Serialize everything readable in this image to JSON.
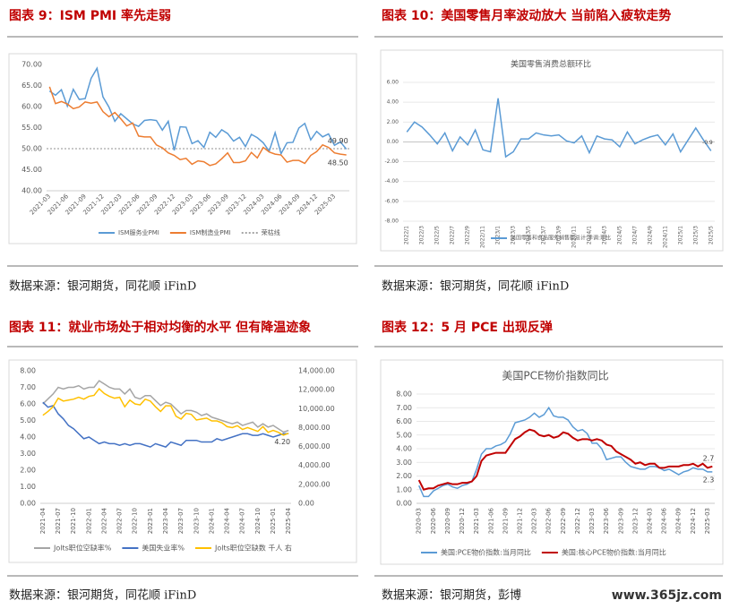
{
  "chart_data": [
    {
      "type": "line",
      "heading": "图表 9：ISM PMI 率先走弱",
      "source": "数据来源：银河期货，同花顺 iFinD",
      "categories": [
        "2021-03",
        null,
        null,
        "2021-06",
        null,
        null,
        "2021-09",
        null,
        null,
        "2021-12",
        null,
        null,
        "2022-03",
        null,
        null,
        "2022-06",
        null,
        null,
        "2022-09",
        null,
        null,
        "2022-12",
        null,
        null,
        "2023-03",
        null,
        null,
        "2023-06",
        null,
        null,
        "2023-09",
        null,
        null,
        "2023-12",
        null,
        null,
        "2024-03",
        null,
        null,
        "2024-06",
        null,
        null,
        "2024-09",
        null,
        null,
        "2024-12",
        null,
        null,
        "2025-03",
        null,
        null
      ],
      "series": [
        {
          "name": "ISM服务业PMI",
          "color": "#5b9bd5",
          "end_label": "49.90",
          "values": [
            63.7,
            62.7,
            64,
            60.1,
            64.1,
            61.7,
            61.9,
            66.7,
            69.1,
            62.3,
            59.9,
            56.5,
            58.3,
            57.1,
            55.9,
            55.3,
            56.7,
            56.9,
            56.7,
            54.4,
            56.5,
            49.6,
            55.2,
            55.1,
            51.2,
            51.9,
            50.3,
            53.9,
            52.7,
            54.5,
            53.6,
            51.8,
            52.7,
            50.5,
            53.4,
            52.6,
            51.4,
            49.4,
            53.8,
            48.8,
            51.4,
            51.5,
            54.9,
            56,
            52.1,
            54.1,
            52.8,
            53.5,
            50.8,
            51.6,
            49.9
          ]
        },
        {
          "name": "ISM制造业PMI",
          "color": "#ed7d31",
          "end_label": "48.50",
          "values": [
            64.7,
            60.7,
            61.2,
            60.6,
            59.5,
            59.9,
            61.1,
            60.8,
            61.1,
            58.8,
            57.6,
            58.6,
            57.1,
            55.4,
            56.1,
            53,
            52.8,
            52.8,
            50.9,
            50.2,
            49,
            48.4,
            47.4,
            47.7,
            46.3,
            47.1,
            46.9,
            46,
            46.4,
            47.6,
            49,
            46.7,
            46.7,
            47.1,
            49.1,
            47.8,
            50.3,
            49.2,
            48.7,
            48.5,
            46.8,
            47.2,
            47.2,
            46.5,
            48.4,
            49.3,
            50.9,
            50.3,
            49,
            48.7,
            48.5
          ]
        }
      ],
      "reference_line": {
        "name": "荣枯线",
        "value": 50,
        "color": "#a6a6a6"
      },
      "ylim": [
        40,
        70
      ],
      "yticks": [
        {
          "value": 40,
          "label": "40.00"
        },
        {
          "value": 45,
          "label": "45.00"
        },
        {
          "value": 50,
          "label": "50.00"
        },
        {
          "value": 55,
          "label": "55.00"
        },
        {
          "value": 60,
          "label": "60.00"
        },
        {
          "value": 65,
          "label": "65.00"
        },
        {
          "value": 70,
          "label": "70.00"
        }
      ],
      "grid": false
    },
    {
      "type": "line",
      "heading": "图表 10：美国零售月率波动放大 当前陷入疲软走势",
      "source": "数据来源：银河期货，同花顺 iFinD",
      "title": "美国零售消费总额环比",
      "categories": [
        "2022/1",
        null,
        "2022/3",
        null,
        "2022/5",
        null,
        "2022/7",
        null,
        "2022/9",
        null,
        "2022/11",
        null,
        "2023/1",
        null,
        "2023/3",
        null,
        "2023/5",
        null,
        "2023/7",
        null,
        "2023/9",
        null,
        "2023/11",
        null,
        "2024/1",
        null,
        "2024/3",
        null,
        "2024/5",
        null,
        "2024/7",
        null,
        "2024/9",
        null,
        "2024/11",
        null,
        "2025/1",
        null,
        "2025/3",
        null,
        "2025/5"
      ],
      "series": [
        {
          "name": "美国零售和食品服务销售额总计:季调:环比",
          "color": "#5b9bd5",
          "end_label": "-0.9",
          "values": [
            1.0,
            2.0,
            1.5,
            0.7,
            -0.2,
            0.9,
            -0.9,
            0.5,
            -0.3,
            1.2,
            -0.8,
            -1.0,
            4.4,
            -1.5,
            -1.0,
            0.3,
            0.3,
            0.9,
            0.7,
            0.6,
            0.7,
            0.1,
            -0.1,
            0.6,
            -1.1,
            0.6,
            0.3,
            0.2,
            -0.5,
            1.0,
            -0.2,
            0.2,
            0.5,
            0.7,
            -0.3,
            0.8,
            -1.0,
            0.2,
            1.4,
            0.2,
            -0.9
          ]
        }
      ],
      "ylim": [
        -8,
        6
      ],
      "yticks": [
        {
          "value": -8,
          "label": "-8.00"
        },
        {
          "value": -6,
          "label": "-6.00"
        },
        {
          "value": -4,
          "label": "-4.00"
        },
        {
          "value": -2,
          "label": "-2.00"
        },
        {
          "value": 0,
          "label": "0.00"
        },
        {
          "value": 2,
          "label": "2.00"
        },
        {
          "value": 4,
          "label": "4.00"
        },
        {
          "value": 6,
          "label": "6.00"
        }
      ],
      "grid": true
    },
    {
      "type": "line",
      "heading": "图表 11：就业市场处于相对均衡的水平 但有降温迹象",
      "source": "数据来源：银河期货，同花顺 iFinD",
      "categories": [
        "2021-04",
        null,
        null,
        "2021-07",
        null,
        null,
        "2021-10",
        null,
        null,
        "2022-01",
        null,
        null,
        "2022-04",
        null,
        null,
        "2022-07",
        null,
        null,
        "2022-10",
        null,
        null,
        "2023-01",
        null,
        null,
        "2023-04",
        null,
        null,
        "2023-07",
        null,
        null,
        "2023-10",
        null,
        null,
        "2024-01",
        null,
        null,
        "2024-04",
        null,
        null,
        "2024-07",
        null,
        null,
        "2024-10",
        null,
        null,
        "2025-01",
        null,
        null,
        "2025-04"
      ],
      "series": [
        {
          "name": "Jolts职位空缺率%",
          "color": "#a5a5a5",
          "values": [
            6.0,
            6.3,
            6.6,
            7.0,
            6.9,
            7.0,
            7.0,
            7.1,
            6.9,
            7.0,
            7.0,
            7.4,
            7.2,
            7.0,
            6.9,
            6.9,
            6.6,
            6.9,
            6.4,
            6.3,
            6.5,
            6.5,
            6.2,
            5.9,
            6.1,
            6.0,
            5.7,
            5.4,
            5.6,
            5.6,
            5.5,
            5.3,
            5.4,
            5.2,
            5.1,
            5.0,
            4.9,
            4.8,
            4.9,
            4.7,
            4.8,
            4.9,
            4.6,
            4.8,
            4.6,
            4.7,
            4.5,
            4.3,
            4.4
          ]
        },
        {
          "name": "美国失业率%",
          "color": "#4472c4",
          "end_label": "4.20",
          "values": [
            6.1,
            5.8,
            5.9,
            5.4,
            5.1,
            4.7,
            4.5,
            4.2,
            3.9,
            4.0,
            3.8,
            3.6,
            3.7,
            3.6,
            3.6,
            3.5,
            3.6,
            3.5,
            3.6,
            3.6,
            3.5,
            3.4,
            3.6,
            3.5,
            3.4,
            3.7,
            3.6,
            3.5,
            3.8,
            3.8,
            3.8,
            3.7,
            3.7,
            3.7,
            3.9,
            3.8,
            3.9,
            4.0,
            4.1,
            4.2,
            4.2,
            4.1,
            4.1,
            4.2,
            4.1,
            4.0,
            4.1,
            4.2,
            4.2
          ]
        },
        {
          "name": "Jolts职位空缺数 千人 右",
          "color": "#ffc000",
          "axis": "y2",
          "values": [
            9300,
            9700,
            10200,
            11100,
            10800,
            10900,
            11000,
            11200,
            11000,
            11300,
            11400,
            12100,
            11600,
            11300,
            11100,
            11200,
            10200,
            10900,
            10500,
            10400,
            11000,
            10800,
            10200,
            9700,
            10300,
            10300,
            9200,
            8900,
            9500,
            9400,
            8800,
            8900,
            9000,
            8700,
            8700,
            8500,
            8100,
            8000,
            8200,
            7800,
            8000,
            7800,
            7600,
            8100,
            7500,
            7700,
            7500,
            7200,
            7400
          ]
        }
      ],
      "ylim": [
        0,
        8
      ],
      "yticks": [
        {
          "value": 0,
          "label": "0.00"
        },
        {
          "value": 1,
          "label": "1.00"
        },
        {
          "value": 2,
          "label": "2.00"
        },
        {
          "value": 3,
          "label": "3.00"
        },
        {
          "value": 4,
          "label": "4.00"
        },
        {
          "value": 5,
          "label": "5.00"
        },
        {
          "value": 6,
          "label": "6.00"
        },
        {
          "value": 7,
          "label": "7.00"
        },
        {
          "value": 8,
          "label": "8.00"
        }
      ],
      "y2lim": [
        0,
        14000
      ],
      "y2ticks": [
        {
          "value": 0,
          "label": "0.00"
        },
        {
          "value": 2000,
          "label": "2,000.00"
        },
        {
          "value": 4000,
          "label": "4,000.00"
        },
        {
          "value": 6000,
          "label": "6,000.00"
        },
        {
          "value": 8000,
          "label": "8,000.00"
        },
        {
          "value": 10000,
          "label": "10,000.00"
        },
        {
          "value": 12000,
          "label": "12,000.00"
        },
        {
          "value": 14000,
          "label": "14,000.00"
        }
      ],
      "grid": false
    },
    {
      "type": "line",
      "heading": "图表 12：5 月 PCE 出现反弹",
      "source": "数据来源：银河期货，彭博",
      "title": "美国PCE物价指数同比",
      "categories": [
        "2020-03",
        null,
        null,
        "2020-06",
        null,
        null,
        "2020-09",
        null,
        null,
        "2020-12",
        null,
        null,
        "2021-03",
        null,
        null,
        "2021-06",
        null,
        null,
        "2021-09",
        null,
        null,
        "2021-12",
        null,
        null,
        "2022-03",
        null,
        null,
        "2022-06",
        null,
        null,
        "2022-09",
        null,
        null,
        "2022-12",
        null,
        null,
        "2023-03",
        null,
        null,
        "2023-06",
        null,
        null,
        "2023-09",
        null,
        null,
        "2023-12",
        null,
        null,
        "2024-03",
        null,
        null,
        "2024-06",
        null,
        null,
        "2024-09",
        null,
        null,
        "2024-12",
        null,
        null,
        "2025-03",
        null
      ],
      "series": [
        {
          "name": "美国:PCE物价指数:当月同比",
          "color": "#5b9bd5",
          "end_label": "2.3",
          "values": [
            1.3,
            0.5,
            0.5,
            0.9,
            1.1,
            1.3,
            1.4,
            1.2,
            1.1,
            1.3,
            1.4,
            1.6,
            2.5,
            3.6,
            4.0,
            4.0,
            4.2,
            4.3,
            4.5,
            5.1,
            5.9,
            6.0,
            6.1,
            6.3,
            6.6,
            6.3,
            6.5,
            7.0,
            6.4,
            6.3,
            6.3,
            6.1,
            5.6,
            5.3,
            5.4,
            5.1,
            4.4,
            4.4,
            4.0,
            3.2,
            3.3,
            3.4,
            3.4,
            3.0,
            2.7,
            2.6,
            2.5,
            2.5,
            2.7,
            2.7,
            2.6,
            2.4,
            2.5,
            2.3,
            2.1,
            2.3,
            2.4,
            2.6,
            2.5,
            2.5,
            2.3,
            2.3
          ]
        },
        {
          "name": "美国:核心PCE物价指数:当月同比",
          "color": "#c00000",
          "end_label": "2.7",
          "values": [
            1.7,
            1.0,
            1.1,
            1.1,
            1.3,
            1.4,
            1.5,
            1.4,
            1.4,
            1.5,
            1.5,
            1.6,
            2.0,
            3.1,
            3.5,
            3.6,
            3.7,
            3.7,
            3.7,
            4.2,
            4.7,
            4.9,
            5.2,
            5.4,
            5.3,
            5.0,
            4.9,
            5.0,
            4.8,
            4.9,
            5.2,
            5.1,
            4.8,
            4.6,
            4.7,
            4.7,
            4.6,
            4.7,
            4.6,
            4.3,
            4.2,
            3.8,
            3.6,
            3.4,
            3.2,
            2.9,
            3.0,
            2.8,
            2.9,
            2.9,
            2.6,
            2.6,
            2.7,
            2.7,
            2.7,
            2.8,
            2.8,
            2.9,
            2.7,
            2.9,
            2.6,
            2.7
          ]
        }
      ],
      "ylim": [
        0,
        8
      ],
      "yticks": [
        {
          "value": 0,
          "label": "0.00"
        },
        {
          "value": 1,
          "label": "1.00"
        },
        {
          "value": 2,
          "label": "2.00"
        },
        {
          "value": 3,
          "label": "3.00"
        },
        {
          "value": 4,
          "label": "4.00"
        },
        {
          "value": 5,
          "label": "5.00"
        },
        {
          "value": 6,
          "label": "6.00"
        },
        {
          "value": 7,
          "label": "7.00"
        },
        {
          "value": 8,
          "label": "8.00"
        }
      ],
      "grid": true
    }
  ],
  "watermark": "www.365jz.com"
}
